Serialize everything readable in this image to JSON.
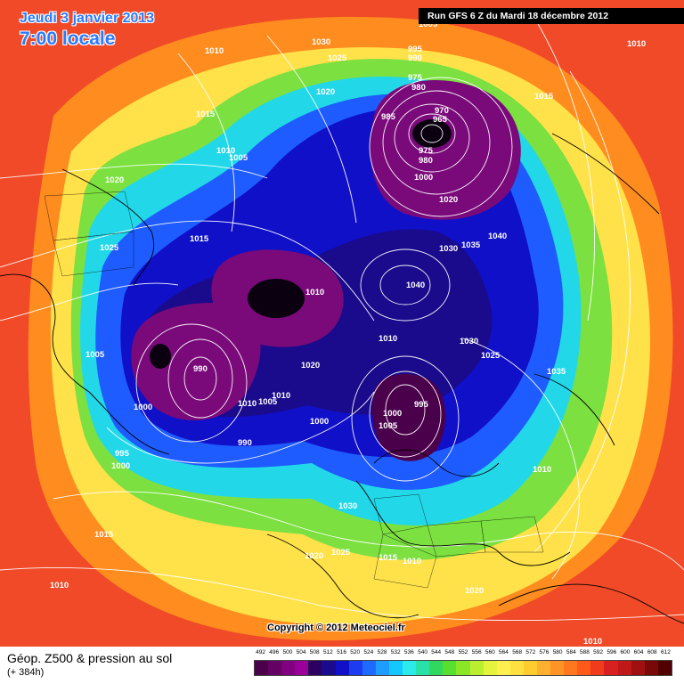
{
  "header": {
    "date": "Jeudi 3 janvier 2013",
    "time": "7:00 locale",
    "run": "Run GFS 6 Z du Mardi 18 décembre 2012"
  },
  "copyright": "Copyright © 2012 Meteociel.fr",
  "footer": {
    "field": "Géop. Z500 & pression au sol",
    "lead": "(+ 384h)"
  },
  "legend": {
    "values": [
      "492",
      "496",
      "500",
      "504",
      "508",
      "512",
      "516",
      "520",
      "524",
      "528",
      "532",
      "536",
      "540",
      "544",
      "548",
      "552",
      "556",
      "560",
      "564",
      "568",
      "572",
      "576",
      "580",
      "584",
      "588",
      "592",
      "596",
      "600",
      "604",
      "608",
      "612"
    ],
    "colors": [
      "#4b004b",
      "#650065",
      "#800080",
      "#99009a",
      "#2b0060",
      "#1a0a8c",
      "#1010c8",
      "#1c3cf0",
      "#1e6aff",
      "#1e9cff",
      "#14c8ff",
      "#2aeaea",
      "#28e0a8",
      "#30d860",
      "#58e030",
      "#8ce628",
      "#bcee30",
      "#e4f43c",
      "#fff050",
      "#ffe040",
      "#ffcc30",
      "#ffb030",
      "#ff9426",
      "#ff781e",
      "#ff5a1a",
      "#f03c1c",
      "#d82020",
      "#c01818",
      "#a01010",
      "#7a0808",
      "#500000"
    ]
  },
  "map": {
    "colors": {
      "outer": "#f04a28",
      "orange": "#ff8c1e",
      "yellow": "#ffe24a",
      "green": "#7ce040",
      "cyan": "#22d8e8",
      "blue": "#1e5cff",
      "deep_blue": "#1010c8",
      "navy": "#1a0a8c",
      "purple": "#7a0a7a",
      "core": "#0a0010"
    },
    "isobar_labels": [
      "1005",
      "1030",
      "995",
      "990",
      "1010",
      "1025",
      "975",
      "980",
      "1020",
      "985",
      "970",
      "965",
      "1015",
      "1010",
      "1005",
      "975",
      "980",
      "1000",
      "1020",
      "1030",
      "1035",
      "1040",
      "1025",
      "1015",
      "1010",
      "1040",
      "1010",
      "1005",
      "1015",
      "990",
      "1010",
      "1020",
      "1030",
      "1025",
      "1035",
      "1000",
      "990",
      "1000",
      "1005",
      "995",
      "1010",
      "1005",
      "995",
      "1000",
      "1000",
      "1010",
      "1030",
      "1025",
      "1020",
      "1015",
      "1010",
      "1015",
      "1010",
      "1020",
      "1010",
      "1020",
      "1010"
    ]
  }
}
